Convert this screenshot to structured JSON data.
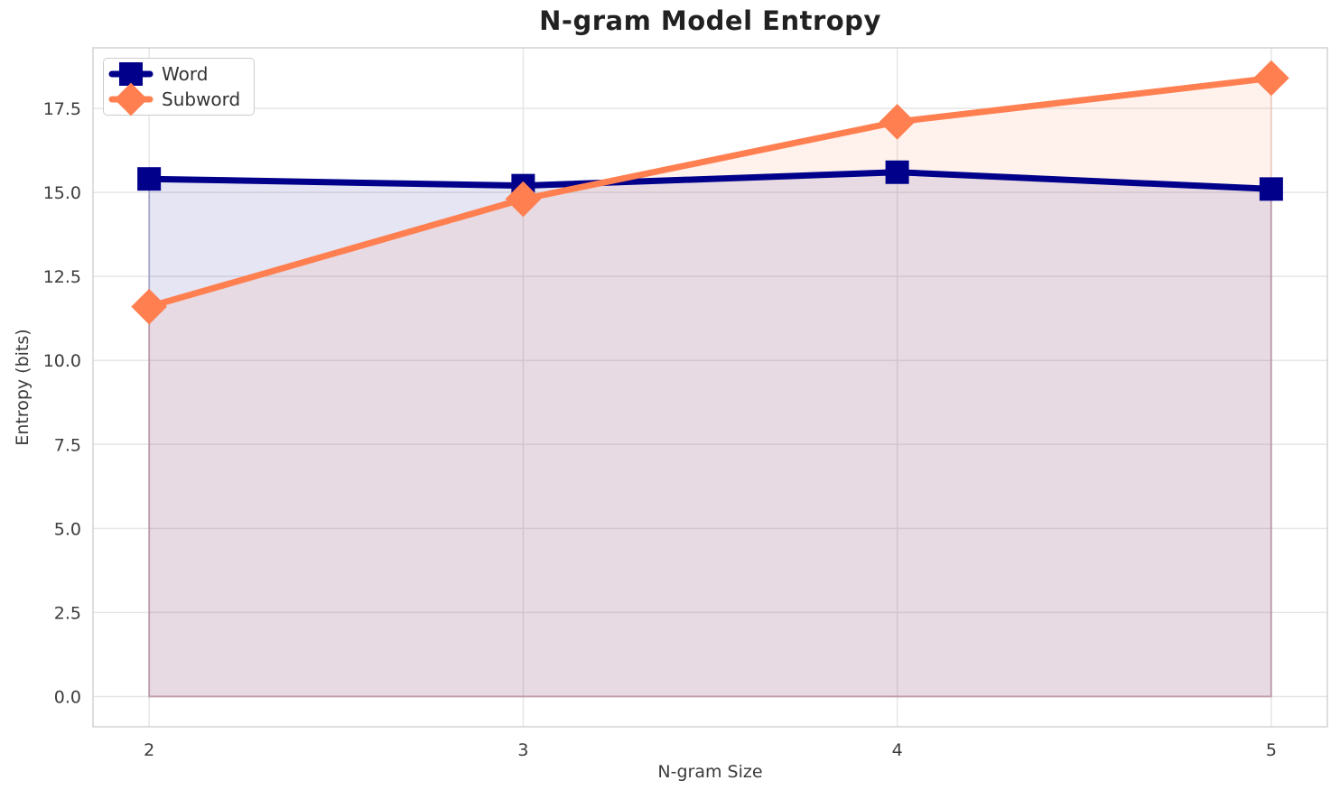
{
  "chart_data": {
    "type": "line",
    "title": "N-gram Model Entropy",
    "xlabel": "N-gram Size",
    "ylabel": "Entropy (bits)",
    "x": [
      2,
      3,
      4,
      5
    ],
    "series": [
      {
        "name": "Word",
        "values": [
          15.4,
          15.2,
          15.6,
          15.1
        ],
        "color": "#00008B",
        "marker": "square"
      },
      {
        "name": "Subword",
        "values": [
          11.6,
          14.8,
          17.1,
          18.4
        ],
        "color": "#FF7F50",
        "marker": "diamond"
      }
    ],
    "fill_to_zero": true,
    "fill_opacity": 0.1,
    "line_width": 7,
    "xlim": [
      1.85,
      5.15
    ],
    "ylim": [
      -0.9,
      19.3
    ],
    "xticks": [
      2,
      3,
      4,
      5
    ],
    "xtick_labels": [
      "2",
      "3",
      "4",
      "5"
    ],
    "yticks": [
      0.0,
      2.5,
      5.0,
      7.5,
      10.0,
      12.5,
      15.0,
      17.5
    ],
    "ytick_labels": [
      "0.0",
      "2.5",
      "5.0",
      "7.5",
      "10.0",
      "12.5",
      "15.0",
      "17.5"
    ],
    "grid": true,
    "legend_position": "upper left",
    "colors": {
      "background": "#FFFFFF",
      "grid": "#E6E6E6",
      "spine": "#D5D5D5",
      "tick_text": "#3B3B3B",
      "title_text": "#212121"
    }
  }
}
